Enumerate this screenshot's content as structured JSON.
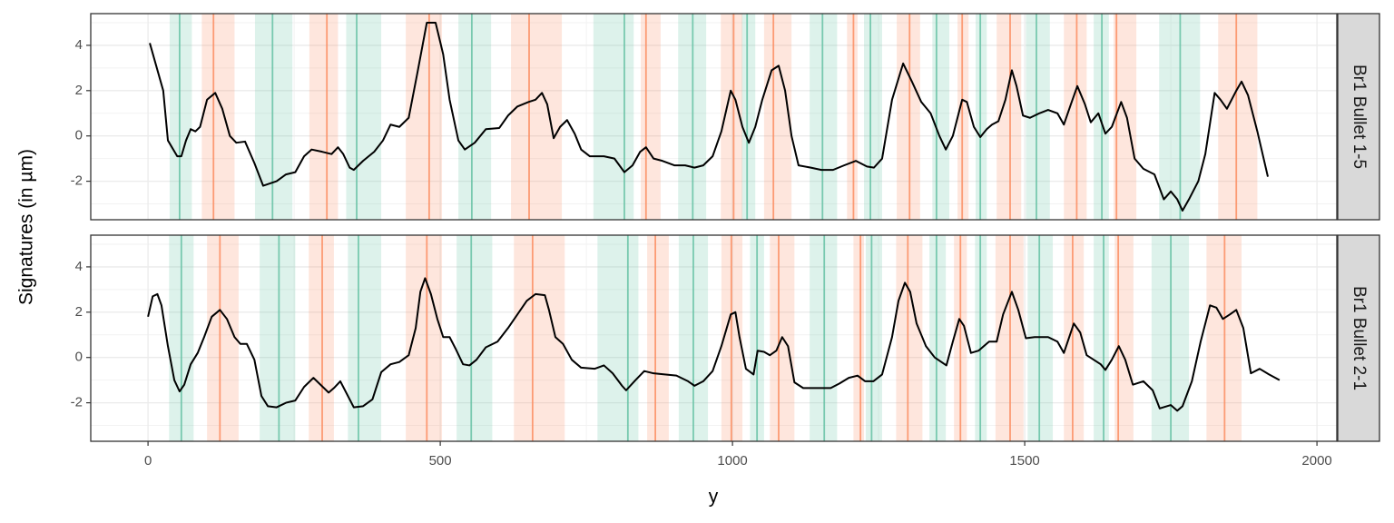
{
  "chart_data": {
    "type": "line",
    "xlabel": "y",
    "ylabel": "Signatures (in µm)",
    "xlim": [
      -98,
      2034
    ],
    "xticks": [
      0,
      500,
      1000,
      1500,
      2000
    ],
    "x_minor_breaks": [
      250,
      750,
      1250,
      1750
    ],
    "ylim": [
      -3.7,
      5.4
    ],
    "yticks": [
      -2,
      0,
      2,
      4
    ],
    "y_minor_breaks": [
      -3,
      -1,
      1,
      3,
      5
    ],
    "grid": true,
    "line_color": "#000000",
    "peak_color": "#fc8d62",
    "valley_color": "#66c2a5",
    "panels": [
      {
        "label": "Br1 Bullet 1-5",
        "x": [
          3,
          26,
          34,
          50,
          57,
          65,
          73,
          81,
          89,
          101,
          115,
          127,
          140,
          151,
          166,
          182,
          197,
          220,
          236,
          252,
          267,
          280,
          298,
          314,
          325,
          334,
          345,
          352,
          368,
          387,
          402,
          415,
          430,
          446,
          461,
          477,
          492,
          505,
          516,
          531,
          542,
          559,
          578,
          601,
          616,
          632,
          651,
          663,
          674,
          683,
          694,
          705,
          717,
          730,
          741,
          756,
          780,
          798,
          815,
          829,
          842,
          852,
          865,
          880,
          901,
          919,
          935,
          950,
          966,
          981,
          997,
          1005,
          1017,
          1028,
          1039,
          1051,
          1067,
          1079,
          1090,
          1101,
          1113,
          1134,
          1152,
          1172,
          1191,
          1211,
          1230,
          1242,
          1256,
          1273,
          1292,
          1307,
          1323,
          1339,
          1354,
          1365,
          1377,
          1393,
          1401,
          1413,
          1424,
          1435,
          1444,
          1455,
          1467,
          1478,
          1486,
          1497,
          1509,
          1525,
          1540,
          1556,
          1567,
          1579,
          1590,
          1603,
          1613,
          1626,
          1638,
          1649,
          1665,
          1675,
          1688,
          1703,
          1722,
          1738,
          1750,
          1761,
          1770,
          1781,
          1797,
          1809,
          1825,
          1835,
          1846,
          1862,
          1871,
          1882,
          1898,
          1916
        ],
        "values": [
          4.1,
          2.0,
          -0.2,
          -0.9,
          -0.9,
          -0.2,
          0.3,
          0.2,
          0.4,
          1.6,
          1.9,
          1.2,
          0.0,
          -0.3,
          -0.25,
          -1.2,
          -2.2,
          -2.0,
          -1.7,
          -1.6,
          -0.9,
          -0.6,
          -0.7,
          -0.8,
          -0.5,
          -0.8,
          -1.4,
          -1.5,
          -1.1,
          -0.7,
          -0.2,
          0.5,
          0.4,
          0.8,
          2.8,
          5.0,
          5.0,
          3.6,
          1.6,
          -0.2,
          -0.6,
          -0.3,
          0.3,
          0.35,
          0.9,
          1.3,
          1.5,
          1.6,
          1.9,
          1.4,
          -0.1,
          0.4,
          0.7,
          0.1,
          -0.6,
          -0.9,
          -0.9,
          -1.0,
          -1.6,
          -1.3,
          -0.7,
          -0.5,
          -1.0,
          -1.1,
          -1.3,
          -1.3,
          -1.4,
          -1.3,
          -0.9,
          0.2,
          2.0,
          1.6,
          0.4,
          -0.3,
          0.4,
          1.6,
          2.9,
          3.1,
          2.0,
          0.0,
          -1.3,
          -1.4,
          -1.5,
          -1.5,
          -1.3,
          -1.1,
          -1.35,
          -1.4,
          -1.0,
          1.6,
          3.2,
          2.4,
          1.5,
          1.0,
          0.0,
          -0.6,
          0.0,
          1.6,
          1.5,
          0.4,
          -0.05,
          0.3,
          0.5,
          0.65,
          1.6,
          2.9,
          2.2,
          0.9,
          0.8,
          1.0,
          1.15,
          1.0,
          0.5,
          1.4,
          2.2,
          1.4,
          0.6,
          1.0,
          0.1,
          0.4,
          1.5,
          0.8,
          -1.0,
          -1.45,
          -1.7,
          -2.8,
          -2.45,
          -2.8,
          -3.3,
          -2.8,
          -2.0,
          -0.8,
          1.9,
          1.6,
          1.2,
          2.0,
          2.4,
          1.8,
          0.2,
          -1.8
        ],
        "peaks": [
          [
            92,
            112,
            148
          ],
          [
            276,
            306,
            325
          ],
          [
            441,
            481,
            503
          ],
          [
            621,
            652,
            708
          ],
          [
            843,
            852,
            877
          ],
          [
            980,
            1002,
            1017
          ],
          [
            1054,
            1070,
            1101
          ],
          [
            1196,
            1207,
            1214
          ],
          [
            1281,
            1303,
            1321
          ],
          [
            1385,
            1393,
            1404
          ],
          [
            1452,
            1475,
            1494
          ],
          [
            1567,
            1589,
            1606
          ],
          [
            1652,
            1657,
            1691
          ],
          [
            1831,
            1862,
            1898
          ]
        ],
        "valleys": [
          [
            37,
            54,
            75
          ],
          [
            183,
            213,
            247
          ],
          [
            339,
            357,
            399
          ],
          [
            531,
            554,
            587
          ],
          [
            762,
            815,
            831
          ],
          [
            907,
            932,
            955
          ],
          [
            1016,
            1025,
            1039
          ],
          [
            1132,
            1154,
            1179
          ],
          [
            1225,
            1236,
            1256
          ],
          [
            1342,
            1349,
            1371
          ],
          [
            1416,
            1424,
            1435
          ],
          [
            1502,
            1520,
            1543
          ],
          [
            1618,
            1632,
            1644
          ],
          [
            1730,
            1766,
            1800
          ]
        ]
      },
      {
        "label": "Br1 Bullet 2-1",
        "x": [
          0,
          8,
          16,
          23,
          34,
          45,
          54,
          62,
          73,
          85,
          96,
          109,
          123,
          135,
          148,
          158,
          169,
          182,
          194,
          205,
          220,
          236,
          252,
          267,
          283,
          293,
          309,
          318,
          329,
          337,
          352,
          368,
          384,
          399,
          415,
          430,
          446,
          458,
          466,
          474,
          484,
          495,
          505,
          516,
          526,
          539,
          550,
          562,
          578,
          598,
          616,
          632,
          648,
          663,
          679,
          686,
          697,
          710,
          725,
          741,
          764,
          780,
          795,
          811,
          818,
          834,
          849,
          865,
          884,
          904,
          924,
          935,
          950,
          966,
          981,
          997,
          1005,
          1012,
          1023,
          1036,
          1043,
          1054,
          1064,
          1075,
          1085,
          1095,
          1106,
          1121,
          1144,
          1168,
          1183,
          1199,
          1214,
          1227,
          1241,
          1256,
          1273,
          1284,
          1295,
          1304,
          1315,
          1331,
          1346,
          1366,
          1377,
          1388,
          1396,
          1408,
          1421,
          1439,
          1452,
          1463,
          1478,
          1489,
          1502,
          1517,
          1540,
          1556,
          1567,
          1584,
          1595,
          1606,
          1618,
          1630,
          1638,
          1649,
          1661,
          1672,
          1685,
          1703,
          1719,
          1731,
          1750,
          1761,
          1770,
          1786,
          1801,
          1817,
          1828,
          1839,
          1851,
          1862,
          1874,
          1887,
          1902,
          1918,
          1936
        ],
        "values": [
          1.8,
          2.7,
          2.8,
          2.3,
          0.5,
          -1.0,
          -1.5,
          -1.2,
          -0.3,
          0.2,
          0.9,
          1.8,
          2.1,
          1.7,
          0.9,
          0.6,
          0.6,
          -0.1,
          -1.7,
          -2.15,
          -2.2,
          -2.0,
          -1.9,
          -1.3,
          -0.9,
          -1.15,
          -1.55,
          -1.35,
          -1.05,
          -1.45,
          -2.2,
          -2.15,
          -1.85,
          -0.65,
          -0.3,
          -0.2,
          0.1,
          1.3,
          2.9,
          3.5,
          2.8,
          1.7,
          0.9,
          0.9,
          0.4,
          -0.3,
          -0.35,
          -0.1,
          0.45,
          0.7,
          1.3,
          1.9,
          2.5,
          2.8,
          2.75,
          2.1,
          0.9,
          0.6,
          -0.1,
          -0.45,
          -0.5,
          -0.35,
          -0.7,
          -1.25,
          -1.45,
          -1.0,
          -0.6,
          -0.7,
          -0.75,
          -0.8,
          -1.05,
          -1.25,
          -1.05,
          -0.6,
          0.5,
          1.9,
          2.0,
          0.9,
          -0.5,
          -0.75,
          0.3,
          0.25,
          0.1,
          0.3,
          0.9,
          0.5,
          -1.1,
          -1.35,
          -1.35,
          -1.35,
          -1.15,
          -0.9,
          -0.8,
          -1.05,
          -1.05,
          -0.75,
          0.9,
          2.5,
          3.3,
          2.9,
          1.5,
          0.5,
          0.0,
          -0.35,
          0.7,
          1.7,
          1.4,
          0.2,
          0.3,
          0.7,
          0.7,
          1.9,
          2.9,
          2.1,
          0.85,
          0.9,
          0.9,
          0.7,
          0.2,
          1.5,
          1.1,
          0.1,
          -0.1,
          -0.3,
          -0.55,
          -0.1,
          0.5,
          -0.1,
          -1.2,
          -1.05,
          -1.45,
          -2.25,
          -2.1,
          -2.35,
          -2.15,
          -1.05,
          0.7,
          2.3,
          2.2,
          1.7,
          1.9,
          2.1,
          1.3,
          -0.7,
          -0.5,
          -0.75,
          -1.0
        ],
        "peaks": [
          [
            101,
            123,
            155
          ],
          [
            275,
            298,
            318
          ],
          [
            441,
            477,
            503
          ],
          [
            626,
            658,
            713
          ],
          [
            854,
            868,
            891
          ],
          [
            981,
            998,
            1017
          ],
          [
            1064,
            1079,
            1106
          ],
          [
            1207,
            1219,
            1225
          ],
          [
            1280,
            1300,
            1325
          ],
          [
            1379,
            1390,
            1401
          ],
          [
            1450,
            1475,
            1498
          ],
          [
            1567,
            1582,
            1601
          ],
          [
            1654,
            1660,
            1686
          ],
          [
            1811,
            1842,
            1871
          ]
        ],
        "valleys": [
          [
            36,
            57,
            78
          ],
          [
            191,
            224,
            252
          ],
          [
            342,
            360,
            399
          ],
          [
            528,
            553,
            589
          ],
          [
            769,
            821,
            839
          ],
          [
            908,
            933,
            958
          ],
          [
            1030,
            1042,
            1054
          ],
          [
            1132,
            1157,
            1179
          ],
          [
            1228,
            1238,
            1256
          ],
          [
            1337,
            1349,
            1365
          ],
          [
            1415,
            1424,
            1435
          ],
          [
            1505,
            1525,
            1548
          ],
          [
            1618,
            1635,
            1644
          ],
          [
            1717,
            1750,
            1781
          ]
        ]
      }
    ]
  }
}
